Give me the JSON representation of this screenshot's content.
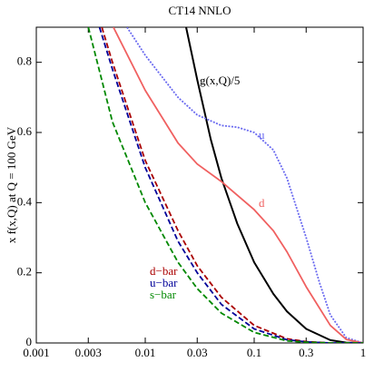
{
  "chart_data": {
    "type": "line",
    "title": "CT14 NNLO",
    "y_label": "x f(x,Q) at Q = 100 GeV",
    "log_x": true,
    "xlim": [
      0.001,
      1
    ],
    "ylim": [
      0,
      0.9
    ],
    "xticks": [
      0.001,
      0.003,
      0.01,
      0.03,
      0.1,
      0.3,
      1
    ],
    "yticks": [
      0,
      0.2,
      0.4,
      0.6,
      0.8
    ],
    "series": [
      {
        "name": "g(x,Q)/5",
        "color": "#000000",
        "style": "solid",
        "x": [
          0.0237,
          0.03,
          0.04,
          0.05,
          0.07,
          0.1,
          0.15,
          0.2,
          0.3,
          0.5,
          0.7,
          1
        ],
        "values": [
          0.9,
          0.75,
          0.58,
          0.47,
          0.34,
          0.23,
          0.14,
          0.09,
          0.04,
          0.008,
          0.001,
          0
        ]
      },
      {
        "name": "u",
        "color": "#6a6af0",
        "style": "dotted",
        "x": [
          0.0068,
          0.01,
          0.02,
          0.03,
          0.05,
          0.07,
          0.1,
          0.15,
          0.2,
          0.3,
          0.4,
          0.5,
          0.7,
          1
        ],
        "values": [
          0.9,
          0.82,
          0.7,
          0.65,
          0.62,
          0.615,
          0.6,
          0.55,
          0.47,
          0.3,
          0.17,
          0.08,
          0.015,
          0
        ]
      },
      {
        "name": "d",
        "color": "#f06060",
        "style": "solid",
        "x": [
          0.0051,
          0.01,
          0.02,
          0.03,
          0.05,
          0.1,
          0.15,
          0.2,
          0.3,
          0.5,
          0.7,
          1
        ],
        "values": [
          0.9,
          0.72,
          0.57,
          0.51,
          0.46,
          0.38,
          0.32,
          0.26,
          0.16,
          0.05,
          0.01,
          0
        ]
      },
      {
        "name": "d−bar",
        "color": "#aa0000",
        "style": "dashed",
        "x": [
          0.004,
          0.005,
          0.01,
          0.02,
          0.03,
          0.05,
          0.1,
          0.2,
          0.3,
          0.5,
          1
        ],
        "values": [
          0.9,
          0.8,
          0.52,
          0.32,
          0.22,
          0.13,
          0.05,
          0.012,
          0.004,
          0,
          0
        ]
      },
      {
        "name": "u−bar",
        "color": "#000099",
        "style": "dashed",
        "x": [
          0.0038,
          0.005,
          0.01,
          0.02,
          0.03,
          0.05,
          0.1,
          0.2,
          0.3,
          0.5,
          1
        ],
        "values": [
          0.9,
          0.78,
          0.5,
          0.29,
          0.2,
          0.11,
          0.04,
          0.009,
          0.003,
          0,
          0
        ]
      },
      {
        "name": "s−bar",
        "color": "#008800",
        "style": "dashed",
        "x": [
          0.003,
          0.005,
          0.01,
          0.02,
          0.03,
          0.05,
          0.1,
          0.2,
          0.3,
          0.5,
          1
        ],
        "values": [
          0.9,
          0.63,
          0.4,
          0.23,
          0.155,
          0.085,
          0.03,
          0.006,
          0.002,
          0,
          0
        ]
      }
    ]
  }
}
